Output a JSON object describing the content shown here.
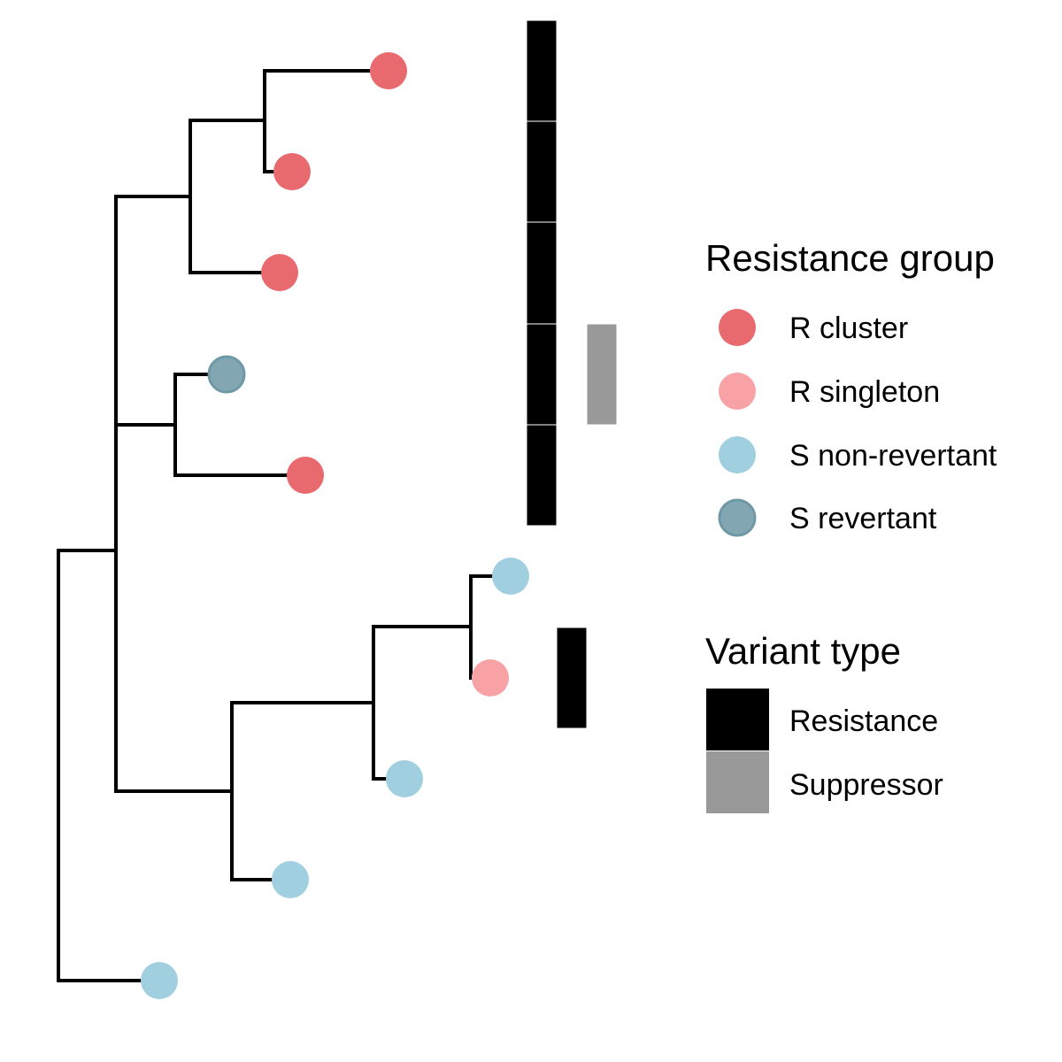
{
  "colors": {
    "branch": "#000000",
    "r_cluster": "#E8696E",
    "r_singleton": "#F9A2A5",
    "s_non_revertant": "#A0CFE0",
    "s_revertant": "#82A7B3",
    "s_revertant_stroke": "#6F98A6",
    "resistance": "#000000",
    "suppressor": "#999999"
  },
  "tips": [
    {
      "group": "r_cluster"
    },
    {
      "group": "r_cluster"
    },
    {
      "group": "r_cluster"
    },
    {
      "group": "s_revertant"
    },
    {
      "group": "r_cluster"
    },
    {
      "group": "s_non_revertant"
    },
    {
      "group": "r_singleton"
    },
    {
      "group": "s_non_revertant"
    },
    {
      "group": "s_non_revertant"
    },
    {
      "group": "s_non_revertant"
    }
  ],
  "variant_tracks": {
    "resistance_tips": [
      0,
      1,
      2,
      3,
      4,
      6
    ],
    "suppressor_tips": [
      3
    ]
  },
  "legend": {
    "resistance_group": {
      "title": "Resistance group",
      "items": [
        {
          "key": "r_cluster",
          "label": "R cluster"
        },
        {
          "key": "r_singleton",
          "label": "R singleton"
        },
        {
          "key": "s_non_revertant",
          "label": "S non-revertant"
        },
        {
          "key": "s_revertant",
          "label": "S revertant"
        }
      ]
    },
    "variant_type": {
      "title": "Variant type",
      "items": [
        {
          "key": "resistance",
          "label": "Resistance"
        },
        {
          "key": "suppressor",
          "label": "Suppressor"
        }
      ]
    }
  }
}
